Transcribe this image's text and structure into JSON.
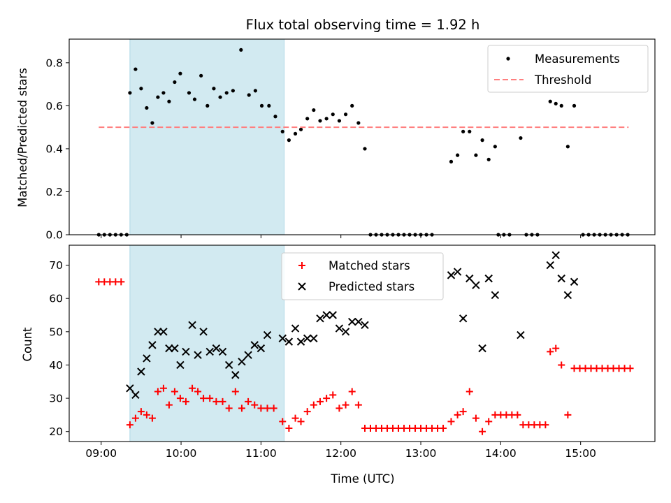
{
  "chart_data": {
    "type": "scatter",
    "title": "Flux total observing time = 1.92 h",
    "xlabel": "Time (UTC)",
    "x_unit": "hours UTC",
    "xlim": [
      8.6,
      15.93
    ],
    "x_tick_values": [
      9,
      10,
      11,
      12,
      13,
      14,
      15
    ],
    "x_tick_labels": [
      "09:00",
      "10:00",
      "11:00",
      "12:00",
      "13:00",
      "14:00",
      "15:00"
    ],
    "shaded_interval": {
      "x": [
        9.36,
        11.29
      ],
      "color": "#add8e6"
    },
    "panels": [
      {
        "name": "top",
        "ylabel": "Matched/Predicted stars",
        "ylim": [
          0,
          0.91
        ],
        "y_ticks": [
          0.0,
          0.2,
          0.4,
          0.6,
          0.8
        ],
        "y_tick_labels": [
          "0.0",
          "0.2",
          "0.4",
          "0.6",
          "0.8"
        ],
        "legend": {
          "position": "top-right"
        },
        "series": [
          {
            "name": "Measurements",
            "marker": "dot",
            "color": "#000000",
            "points": [
              [
                8.97,
                0
              ],
              [
                9.04,
                0
              ],
              [
                9.11,
                0
              ],
              [
                9.18,
                0
              ],
              [
                9.25,
                0
              ],
              [
                9.32,
                0
              ],
              [
                9.36,
                0.66
              ],
              [
                9.43,
                0.77
              ],
              [
                9.5,
                0.68
              ],
              [
                9.57,
                0.59
              ],
              [
                9.64,
                0.52
              ],
              [
                9.71,
                0.64
              ],
              [
                9.78,
                0.66
              ],
              [
                9.85,
                0.62
              ],
              [
                9.92,
                0.71
              ],
              [
                9.99,
                0.75
              ],
              [
                10.1,
                0.66
              ],
              [
                10.17,
                0.63
              ],
              [
                10.25,
                0.74
              ],
              [
                10.33,
                0.6
              ],
              [
                10.41,
                0.68
              ],
              [
                10.49,
                0.64
              ],
              [
                10.57,
                0.66
              ],
              [
                10.65,
                0.67
              ],
              [
                10.75,
                0.86
              ],
              [
                10.85,
                0.65
              ],
              [
                10.93,
                0.67
              ],
              [
                11.01,
                0.6
              ],
              [
                11.1,
                0.6
              ],
              [
                11.18,
                0.55
              ],
              [
                11.27,
                0.48
              ],
              [
                11.35,
                0.44
              ],
              [
                11.43,
                0.47
              ],
              [
                11.5,
                0.49
              ],
              [
                11.58,
                0.54
              ],
              [
                11.66,
                0.58
              ],
              [
                11.74,
                0.53
              ],
              [
                11.82,
                0.54
              ],
              [
                11.9,
                0.56
              ],
              [
                11.98,
                0.53
              ],
              [
                12.06,
                0.56
              ],
              [
                12.14,
                0.6
              ],
              [
                12.22,
                0.52
              ],
              [
                12.3,
                0.4
              ],
              [
                12.37,
                0
              ],
              [
                12.44,
                0
              ],
              [
                12.51,
                0
              ],
              [
                12.58,
                0
              ],
              [
                12.65,
                0
              ],
              [
                12.72,
                0
              ],
              [
                12.79,
                0
              ],
              [
                12.86,
                0
              ],
              [
                12.93,
                0
              ],
              [
                13.0,
                0
              ],
              [
                13.07,
                0
              ],
              [
                13.14,
                0
              ],
              [
                13.38,
                0.34
              ],
              [
                13.46,
                0.37
              ],
              [
                13.53,
                0.48
              ],
              [
                13.61,
                0.48
              ],
              [
                13.69,
                0.37
              ],
              [
                13.77,
                0.44
              ],
              [
                13.85,
                0.35
              ],
              [
                13.93,
                0.41
              ],
              [
                13.97,
                0
              ],
              [
                14.04,
                0
              ],
              [
                14.11,
                0
              ],
              [
                14.25,
                0.45
              ],
              [
                14.32,
                0
              ],
              [
                14.39,
                0
              ],
              [
                14.46,
                0
              ],
              [
                14.62,
                0.62
              ],
              [
                14.69,
                0.61
              ],
              [
                14.76,
                0.6
              ],
              [
                14.84,
                0.41
              ],
              [
                14.92,
                0.6
              ],
              [
                15.03,
                0
              ],
              [
                15.1,
                0
              ],
              [
                15.17,
                0
              ],
              [
                15.24,
                0
              ],
              [
                15.31,
                0
              ],
              [
                15.38,
                0
              ],
              [
                15.45,
                0
              ],
              [
                15.52,
                0
              ],
              [
                15.59,
                0
              ]
            ]
          },
          {
            "name": "Threshold",
            "line": "dashed",
            "color": "#ff7f7f",
            "x": [
              8.97,
              15.6
            ],
            "y": [
              0.5,
              0.5
            ]
          }
        ]
      },
      {
        "name": "bottom",
        "ylabel": "Count",
        "ylim": [
          17,
          76
        ],
        "y_ticks": [
          20,
          30,
          40,
          50,
          60,
          70
        ],
        "y_tick_labels": [
          "20",
          "30",
          "40",
          "50",
          "60",
          "70"
        ],
        "legend": {
          "position": "top-center"
        },
        "series": [
          {
            "name": "Matched stars",
            "marker": "plus",
            "color": "#ff0000",
            "points": [
              [
                8.97,
                65
              ],
              [
                9.04,
                65
              ],
              [
                9.11,
                65
              ],
              [
                9.18,
                65
              ],
              [
                9.25,
                65
              ],
              [
                9.36,
                22
              ],
              [
                9.43,
                24
              ],
              [
                9.5,
                26
              ],
              [
                9.57,
                25
              ],
              [
                9.64,
                24
              ],
              [
                9.71,
                32
              ],
              [
                9.78,
                33
              ],
              [
                9.85,
                28
              ],
              [
                9.92,
                32
              ],
              [
                9.99,
                30
              ],
              [
                10.06,
                29
              ],
              [
                10.14,
                33
              ],
              [
                10.21,
                32
              ],
              [
                10.28,
                30
              ],
              [
                10.36,
                30
              ],
              [
                10.44,
                29
              ],
              [
                10.52,
                29
              ],
              [
                10.6,
                27
              ],
              [
                10.68,
                32
              ],
              [
                10.76,
                27
              ],
              [
                10.84,
                29
              ],
              [
                10.92,
                28
              ],
              [
                11.0,
                27
              ],
              [
                11.08,
                27
              ],
              [
                11.16,
                27
              ],
              [
                11.27,
                23
              ],
              [
                11.35,
                21
              ],
              [
                11.43,
                24
              ],
              [
                11.5,
                23
              ],
              [
                11.58,
                26
              ],
              [
                11.66,
                28
              ],
              [
                11.74,
                29
              ],
              [
                11.82,
                30
              ],
              [
                11.9,
                31
              ],
              [
                11.98,
                27
              ],
              [
                12.06,
                28
              ],
              [
                12.14,
                32
              ],
              [
                12.22,
                28
              ],
              [
                12.3,
                21
              ],
              [
                12.37,
                21
              ],
              [
                12.44,
                21
              ],
              [
                12.51,
                21
              ],
              [
                12.58,
                21
              ],
              [
                12.65,
                21
              ],
              [
                12.72,
                21
              ],
              [
                12.79,
                21
              ],
              [
                12.86,
                21
              ],
              [
                12.93,
                21
              ],
              [
                13.0,
                21
              ],
              [
                13.07,
                21
              ],
              [
                13.14,
                21
              ],
              [
                13.21,
                21
              ],
              [
                13.28,
                21
              ],
              [
                13.38,
                23
              ],
              [
                13.46,
                25
              ],
              [
                13.53,
                26
              ],
              [
                13.61,
                32
              ],
              [
                13.69,
                24
              ],
              [
                13.77,
                20
              ],
              [
                13.85,
                23
              ],
              [
                13.93,
                25
              ],
              [
                14.0,
                25
              ],
              [
                14.07,
                25
              ],
              [
                14.14,
                25
              ],
              [
                14.21,
                25
              ],
              [
                14.28,
                22
              ],
              [
                14.35,
                22
              ],
              [
                14.42,
                22
              ],
              [
                14.49,
                22
              ],
              [
                14.56,
                22
              ],
              [
                14.62,
                44
              ],
              [
                14.69,
                45
              ],
              [
                14.76,
                40
              ],
              [
                14.84,
                25
              ],
              [
                14.92,
                39
              ],
              [
                14.99,
                39
              ],
              [
                15.06,
                39
              ],
              [
                15.13,
                39
              ],
              [
                15.2,
                39
              ],
              [
                15.27,
                39
              ],
              [
                15.34,
                39
              ],
              [
                15.41,
                39
              ],
              [
                15.48,
                39
              ],
              [
                15.55,
                39
              ],
              [
                15.62,
                39
              ]
            ]
          },
          {
            "name": "Predicted stars",
            "marker": "x",
            "color": "#000000",
            "points": [
              [
                9.36,
                33
              ],
              [
                9.43,
                31
              ],
              [
                9.5,
                38
              ],
              [
                9.57,
                42
              ],
              [
                9.64,
                46
              ],
              [
                9.71,
                50
              ],
              [
                9.78,
                50
              ],
              [
                9.85,
                45
              ],
              [
                9.92,
                45
              ],
              [
                9.99,
                40
              ],
              [
                10.06,
                44
              ],
              [
                10.14,
                52
              ],
              [
                10.21,
                43
              ],
              [
                10.28,
                50
              ],
              [
                10.36,
                44
              ],
              [
                10.44,
                45
              ],
              [
                10.52,
                44
              ],
              [
                10.6,
                40
              ],
              [
                10.68,
                37
              ],
              [
                10.76,
                41
              ],
              [
                10.84,
                43
              ],
              [
                10.92,
                46
              ],
              [
                11.0,
                45
              ],
              [
                11.08,
                49
              ],
              [
                11.27,
                48
              ],
              [
                11.35,
                47
              ],
              [
                11.43,
                51
              ],
              [
                11.5,
                47
              ],
              [
                11.58,
                48
              ],
              [
                11.66,
                48
              ],
              [
                11.74,
                54
              ],
              [
                11.82,
                55
              ],
              [
                11.9,
                55
              ],
              [
                11.98,
                51
              ],
              [
                12.06,
                50
              ],
              [
                12.14,
                53
              ],
              [
                12.22,
                53
              ],
              [
                12.3,
                52
              ],
              [
                13.38,
                67
              ],
              [
                13.46,
                68
              ],
              [
                13.53,
                54
              ],
              [
                13.61,
                66
              ],
              [
                13.69,
                64
              ],
              [
                13.77,
                45
              ],
              [
                13.85,
                66
              ],
              [
                13.93,
                61
              ],
              [
                14.25,
                49
              ],
              [
                14.62,
                70
              ],
              [
                14.69,
                73
              ],
              [
                14.76,
                66
              ],
              [
                14.84,
                61
              ],
              [
                14.92,
                65
              ]
            ]
          }
        ]
      }
    ]
  }
}
